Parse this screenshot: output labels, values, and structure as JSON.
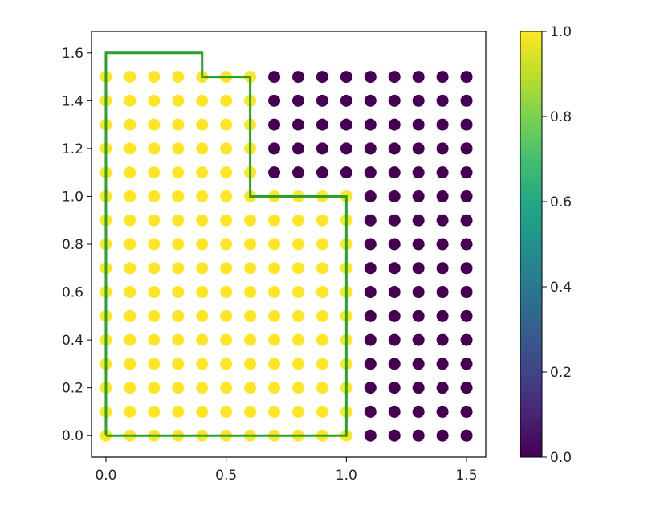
{
  "chart_data": {
    "type": "scatter",
    "title": "",
    "xlabel": "",
    "ylabel": "",
    "xlim": [
      -0.06,
      1.58
    ],
    "ylim": [
      -0.09,
      1.69
    ],
    "x_ticks": [
      "0.0",
      "0.5",
      "1.0",
      "1.5"
    ],
    "y_ticks": [
      "0.0",
      "0.2",
      "0.4",
      "0.6",
      "0.8",
      "1.0",
      "1.2",
      "1.4",
      "1.6"
    ],
    "grid": false,
    "grid_x": [
      0.0,
      0.1,
      0.2,
      0.3,
      0.4,
      0.5,
      0.6,
      0.7,
      0.8,
      0.9,
      1.0,
      1.1,
      1.2,
      1.3,
      1.4,
      1.5
    ],
    "grid_y": [
      0.0,
      0.1,
      0.2,
      0.3,
      0.4,
      0.5,
      0.6,
      0.7,
      0.8,
      0.9,
      1.0,
      1.1,
      1.2,
      1.3,
      1.4,
      1.5
    ],
    "colormap": "viridis",
    "color_rule": "value 1.0 (yellow) for points inside the green boundary, 0.0 (dark purple) outside",
    "boundary_polygon": [
      [
        0.0,
        0.0
      ],
      [
        1.0,
        0.0
      ],
      [
        1.0,
        1.0
      ],
      [
        0.6,
        1.0
      ],
      [
        0.6,
        1.5
      ],
      [
        0.4,
        1.5
      ],
      [
        0.4,
        1.6
      ],
      [
        0.0,
        1.6
      ],
      [
        0.0,
        0.0
      ]
    ],
    "boundary_color": "#2ca02c",
    "colorbar": {
      "range": [
        0.0,
        1.0
      ],
      "ticks": [
        "0.0",
        "0.2",
        "0.4",
        "0.6",
        "0.8",
        "1.0"
      ]
    },
    "colors": {
      "high": "#fde725",
      "low": "#440154"
    }
  }
}
